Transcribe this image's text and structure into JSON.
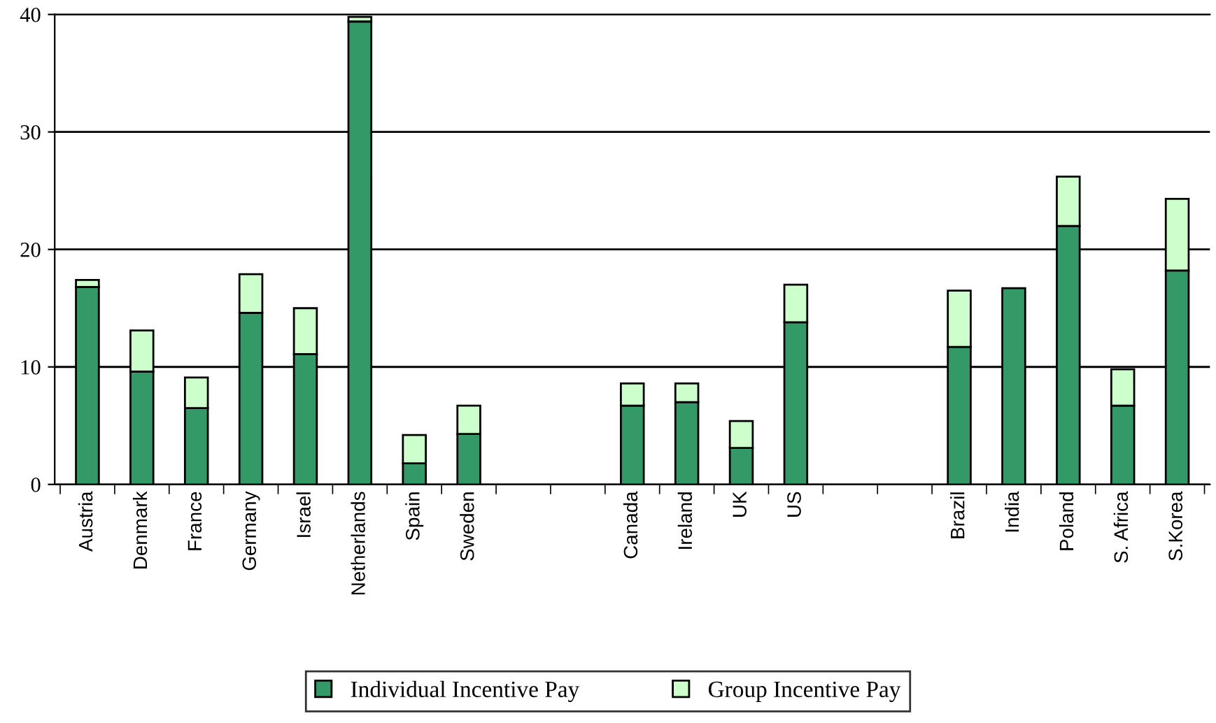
{
  "chart_data": {
    "type": "bar",
    "stacked": true,
    "categories": [
      "Austria",
      "Denmark",
      "France",
      "Germany",
      "Israel",
      "Netherlands",
      "Spain",
      "Sweden",
      null,
      null,
      "Canada",
      "Ireland",
      "UK",
      "US",
      null,
      null,
      "Brazil",
      "India",
      "Poland",
      "S. Africa",
      "S.Korea"
    ],
    "series": [
      {
        "name": "Individual Incentive Pay",
        "color": "#339966",
        "values": [
          16.8,
          9.6,
          6.5,
          14.6,
          11.1,
          39.4,
          1.8,
          4.3,
          null,
          null,
          6.7,
          7.0,
          3.1,
          13.8,
          null,
          null,
          11.7,
          16.7,
          22.0,
          6.7,
          18.2
        ]
      },
      {
        "name": "Group Incentive Pay",
        "color": "#ccffcc",
        "values": [
          0.6,
          3.5,
          2.6,
          3.3,
          3.9,
          0.4,
          2.4,
          2.4,
          null,
          null,
          1.9,
          1.6,
          2.3,
          3.2,
          null,
          null,
          4.8,
          null,
          4.2,
          3.1,
          6.1
        ]
      }
    ],
    "ylim": [
      0,
      40
    ],
    "yticks": [
      0,
      10,
      20,
      30,
      40
    ],
    "grid": "y",
    "legend": "bottom"
  }
}
